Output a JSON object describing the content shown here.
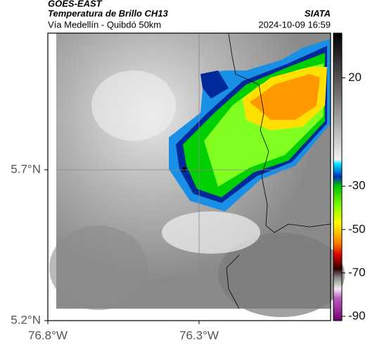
{
  "header": {
    "source": "GOES-EAST",
    "title": "Temperatura de Brillo CH13",
    "subtitle": "Vía Medellín - Quibdó 50km",
    "agency": "SIATA",
    "datetime": "2024-10-09 16:59"
  },
  "map": {
    "xlim": [
      -76.8,
      -75.865
    ],
    "ylim": [
      5.2,
      6.153
    ],
    "xticks": [
      {
        "value": -76.8,
        "label": "76.8°W"
      },
      {
        "value": -76.3,
        "label": "76.3°W"
      }
    ],
    "yticks": [
      {
        "value": 5.7,
        "label": "5.7°N"
      },
      {
        "value": 5.2,
        "label": "5.2°N"
      }
    ]
  },
  "colorbar": {
    "lim": [
      -92,
      40.6
    ],
    "ticks": [
      20,
      -30,
      -50,
      -70,
      -90
    ]
  }
}
